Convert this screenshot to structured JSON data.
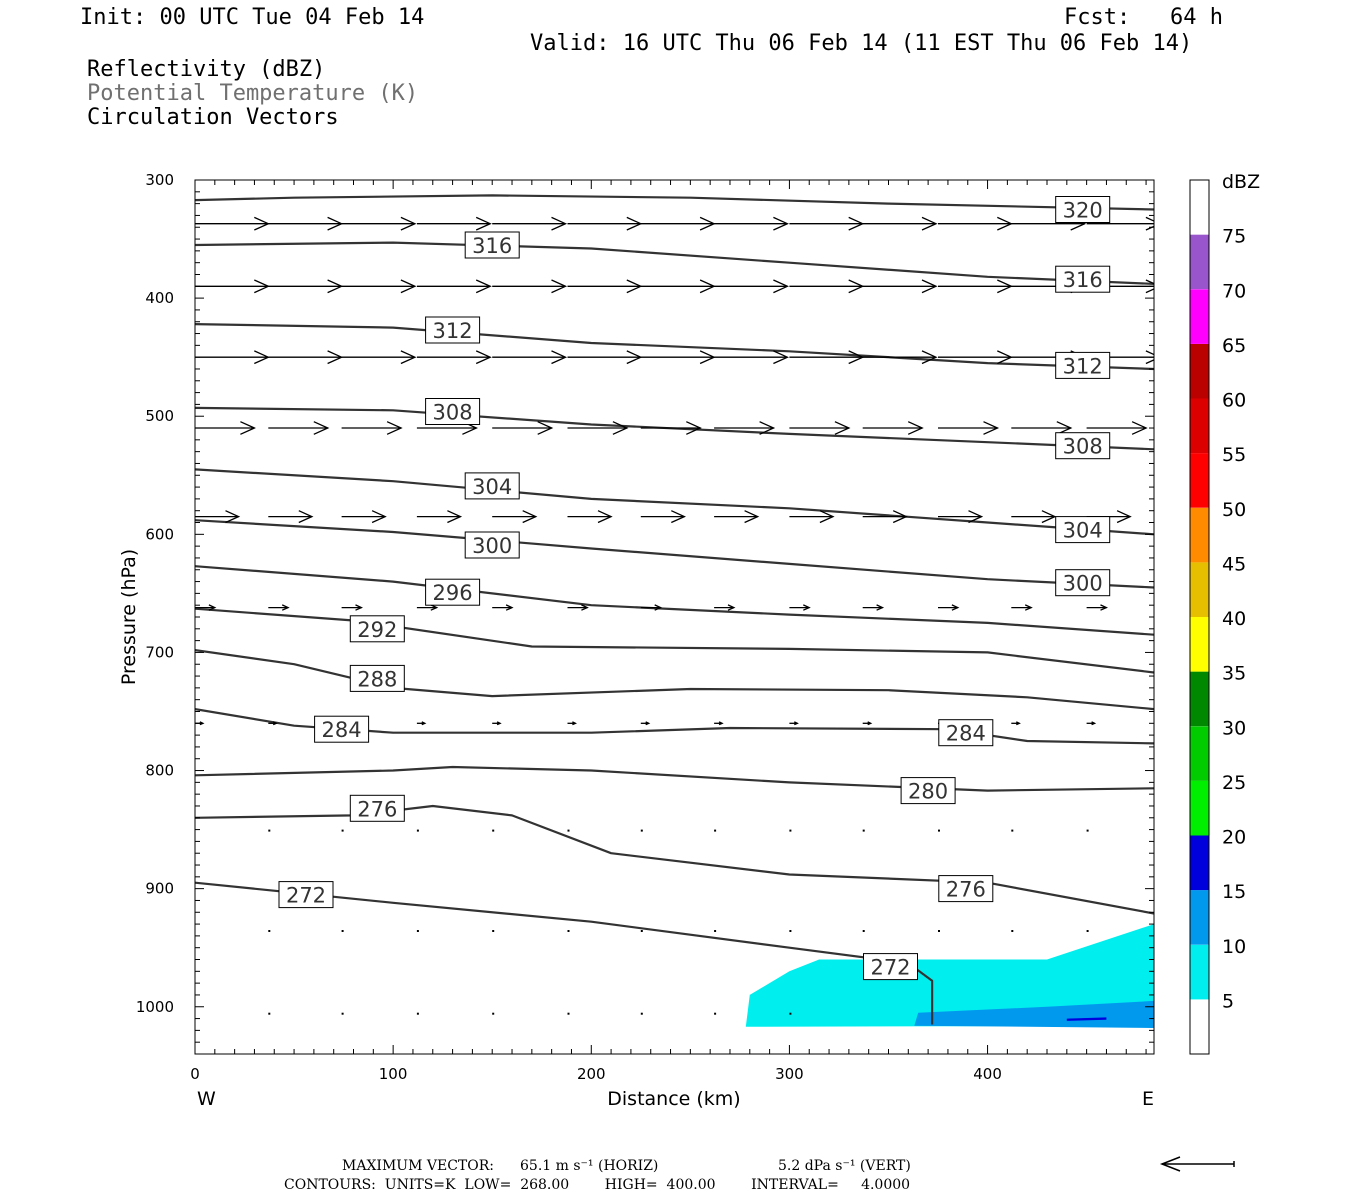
{
  "header": {
    "init": "Init: 00 UTC Tue 04 Feb 14",
    "fcst": "Fcst:   64 h",
    "valid": "Valid: 16 UTC Thu 06 Feb 14 (11 EST Thu 06 Feb 14)",
    "field1": "Reflectivity (dBZ)",
    "field2": "Potential Temperature (K)",
    "field3": "Circulation Vectors"
  },
  "footer": {
    "max_vector_label": "MAXIMUM VECTOR:",
    "max_vector_horiz": "65.1 m s⁻¹ (HORIZ)",
    "max_vector_vert": "5.2 dPa s⁻¹ (VERT)",
    "contours": "CONTOURS:  UNITS=K  LOW=  268.00        HIGH=  400.00        INTERVAL=     4.0000"
  },
  "colors": {
    "contour": "#333333",
    "refl_5": "#00eeee",
    "refl_10": "#0099ee",
    "refl_15": "#0000dd"
  },
  "chart_data": {
    "type": "cross-section",
    "xlabel": "Distance (km)",
    "ylabel": "Pressure (hPa)",
    "xlim": [
      0,
      484
    ],
    "ylim": [
      1040,
      300
    ],
    "x_ticks": [
      0,
      100,
      200,
      300,
      400
    ],
    "y_ticks": [
      300,
      400,
      500,
      600,
      700,
      800,
      900,
      1000
    ],
    "x_end_labels": {
      "left": "W",
      "right": "E"
    },
    "colorbar": {
      "unit": "dBZ",
      "ticks": [
        5,
        10,
        15,
        20,
        25,
        30,
        35,
        40,
        45,
        50,
        55,
        60,
        65,
        70,
        75
      ],
      "bins": [
        {
          "min": 0,
          "max": 5,
          "color": "#ffffff"
        },
        {
          "min": 5,
          "max": 10,
          "color": "#00eeee"
        },
        {
          "min": 10,
          "max": 15,
          "color": "#0099ee"
        },
        {
          "min": 15,
          "max": 20,
          "color": "#0000dd"
        },
        {
          "min": 20,
          "max": 25,
          "color": "#00ee00"
        },
        {
          "min": 25,
          "max": 30,
          "color": "#00cc00"
        },
        {
          "min": 30,
          "max": 35,
          "color": "#008800"
        },
        {
          "min": 35,
          "max": 40,
          "color": "#ffff00"
        },
        {
          "min": 40,
          "max": 45,
          "color": "#e6c000"
        },
        {
          "min": 45,
          "max": 50,
          "color": "#ff8c00"
        },
        {
          "min": 50,
          "max": 55,
          "color": "#ff0000"
        },
        {
          "min": 55,
          "max": 60,
          "color": "#dd0000"
        },
        {
          "min": 60,
          "max": 65,
          "color": "#bb0000"
        },
        {
          "min": 65,
          "max": 70,
          "color": "#ff00ff"
        },
        {
          "min": 70,
          "max": 75,
          "color": "#9955cc"
        },
        {
          "min": 75,
          "max": 80,
          "color": "#ffffff"
        }
      ]
    },
    "theta_contours": [
      {
        "value": 320,
        "points": [
          [
            0,
            317
          ],
          [
            50,
            315
          ],
          [
            150,
            313
          ],
          [
            250,
            315
          ],
          [
            350,
            320
          ],
          [
            484,
            325
          ]
        ],
        "labels": [
          [
            448,
            325
          ]
        ]
      },
      {
        "value": 316,
        "points": [
          [
            0,
            355
          ],
          [
            100,
            353
          ],
          [
            200,
            358
          ],
          [
            300,
            370
          ],
          [
            400,
            382
          ],
          [
            484,
            388
          ]
        ],
        "labels": [
          [
            150,
            355
          ],
          [
            448,
            384
          ]
        ]
      },
      {
        "value": 312,
        "points": [
          [
            0,
            422
          ],
          [
            100,
            425
          ],
          [
            200,
            438
          ],
          [
            300,
            445
          ],
          [
            400,
            455
          ],
          [
            484,
            460
          ]
        ],
        "labels": [
          [
            130,
            427
          ],
          [
            448,
            457
          ]
        ]
      },
      {
        "value": 308,
        "points": [
          [
            0,
            493
          ],
          [
            100,
            495
          ],
          [
            200,
            507
          ],
          [
            300,
            515
          ],
          [
            400,
            522
          ],
          [
            484,
            528
          ]
        ],
        "labels": [
          [
            130,
            496
          ],
          [
            448,
            525
          ]
        ]
      },
      {
        "value": 304,
        "points": [
          [
            0,
            545
          ],
          [
            100,
            555
          ],
          [
            200,
            570
          ],
          [
            300,
            578
          ],
          [
            400,
            590
          ],
          [
            484,
            600
          ]
        ],
        "labels": [
          [
            150,
            559
          ],
          [
            448,
            596
          ]
        ]
      },
      {
        "value": 300,
        "points": [
          [
            0,
            588
          ],
          [
            100,
            598
          ],
          [
            200,
            612
          ],
          [
            300,
            625
          ],
          [
            400,
            638
          ],
          [
            484,
            645
          ]
        ],
        "labels": [
          [
            150,
            609
          ],
          [
            448,
            641
          ]
        ]
      },
      {
        "value": 296,
        "points": [
          [
            0,
            627
          ],
          [
            100,
            640
          ],
          [
            200,
            660
          ],
          [
            300,
            668
          ],
          [
            400,
            675
          ],
          [
            484,
            685
          ]
        ],
        "labels": [
          [
            130,
            649
          ]
        ]
      },
      {
        "value": 292,
        "points": [
          [
            0,
            663
          ],
          [
            80,
            673
          ],
          [
            170,
            695
          ],
          [
            300,
            697
          ],
          [
            400,
            700
          ],
          [
            484,
            717
          ]
        ],
        "labels": [
          [
            92,
            680
          ]
        ]
      },
      {
        "value": 288,
        "points": [
          [
            0,
            698
          ],
          [
            50,
            710
          ],
          [
            100,
            730
          ],
          [
            150,
            737
          ],
          [
            250,
            731
          ],
          [
            350,
            732
          ],
          [
            420,
            738
          ],
          [
            484,
            748
          ]
        ],
        "labels": [
          [
            92,
            722
          ]
        ]
      },
      {
        "value": 284,
        "points": [
          [
            0,
            748
          ],
          [
            50,
            762
          ],
          [
            100,
            768
          ],
          [
            200,
            768
          ],
          [
            270,
            764
          ],
          [
            380,
            765
          ],
          [
            420,
            775
          ],
          [
            484,
            777
          ]
        ],
        "labels": [
          [
            74,
            765
          ],
          [
            389,
            768
          ]
        ]
      },
      {
        "value": 280,
        "points": [
          [
            0,
            804
          ],
          [
            100,
            800
          ],
          [
            130,
            797
          ],
          [
            200,
            800
          ],
          [
            300,
            810
          ],
          [
            400,
            817
          ],
          [
            484,
            815
          ]
        ],
        "labels": [
          [
            370,
            817
          ]
        ]
      },
      {
        "value": 276,
        "points": [
          [
            0,
            840
          ],
          [
            80,
            838
          ],
          [
            120,
            830
          ],
          [
            160,
            838
          ],
          [
            210,
            870
          ],
          [
            300,
            888
          ],
          [
            400,
            895
          ],
          [
            484,
            921
          ]
        ],
        "labels": [
          [
            92,
            832
          ],
          [
            389,
            900
          ]
        ]
      },
      {
        "value": 272,
        "points": [
          [
            0,
            895
          ],
          [
            100,
            912
          ],
          [
            200,
            928
          ],
          [
            300,
            950
          ],
          [
            360,
            963
          ],
          [
            372,
            978
          ],
          [
            372,
            1015
          ]
        ],
        "labels": [
          [
            56,
            905
          ],
          [
            351,
            966
          ]
        ]
      }
    ],
    "reflectivity_areas": [
      {
        "dbz": 5,
        "points": [
          [
            278,
            1017
          ],
          [
            280,
            990
          ],
          [
            300,
            970
          ],
          [
            315,
            960
          ],
          [
            430,
            960
          ],
          [
            484,
            930
          ],
          [
            484,
            1016
          ]
        ]
      },
      {
        "dbz": 10,
        "points": [
          [
            363,
            1016
          ],
          [
            365,
            1005
          ],
          [
            430,
            1000
          ],
          [
            484,
            995
          ],
          [
            484,
            1018
          ]
        ]
      },
      {
        "dbz": 15,
        "points": [
          [
            440,
            1010
          ],
          [
            460,
            1009
          ],
          [
            460,
            1011
          ],
          [
            440,
            1012
          ]
        ]
      }
    ],
    "vector_rows": [
      {
        "p": 337,
        "length_km": 37,
        "x": [
          0,
          37,
          74,
          112,
          150,
          188,
          225,
          262,
          300,
          337,
          375,
          412,
          450
        ]
      },
      {
        "p": 390,
        "length_km": 37,
        "x": [
          0,
          37,
          74,
          112,
          150,
          188,
          225,
          262,
          300,
          337,
          375,
          412,
          450
        ]
      },
      {
        "p": 450,
        "length_km": 37,
        "x": [
          0,
          37,
          74,
          112,
          150,
          188,
          225,
          262,
          300,
          337,
          375,
          412,
          450
        ]
      },
      {
        "p": 510,
        "length_km": 30,
        "x": [
          0,
          37,
          74,
          112,
          150,
          188,
          225,
          262,
          300,
          337,
          375,
          412,
          450
        ]
      },
      {
        "p": 585,
        "length_km": 22,
        "x": [
          0,
          37,
          74,
          112,
          150,
          188,
          225,
          262,
          300,
          337,
          375,
          412,
          450
        ]
      },
      {
        "p": 662,
        "length_km": 10,
        "x": [
          0,
          37,
          74,
          112,
          150,
          188,
          225,
          262,
          300,
          337,
          375,
          412,
          450
        ]
      },
      {
        "p": 760,
        "length_km": 4,
        "x": [
          0,
          37,
          74,
          112,
          150,
          188,
          225,
          262,
          300,
          337,
          375,
          412,
          450
        ]
      }
    ],
    "dot_rows": [
      {
        "p": 850,
        "x": [
          37,
          74,
          112,
          150,
          188,
          225,
          262,
          300,
          337,
          375,
          412,
          450
        ]
      },
      {
        "p": 935,
        "x": [
          37,
          74,
          112,
          150,
          188,
          225,
          262,
          300,
          337,
          375,
          412,
          450
        ]
      },
      {
        "p": 1005,
        "x": [
          37,
          74,
          112,
          150,
          188,
          225,
          262,
          300
        ]
      }
    ]
  }
}
